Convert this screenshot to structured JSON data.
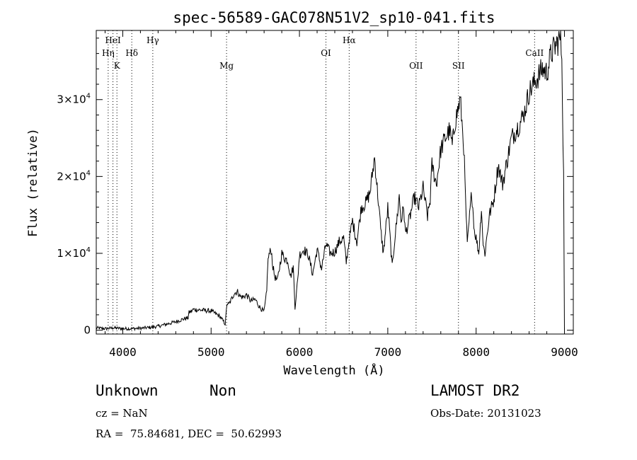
{
  "chart_data": {
    "type": "line",
    "title": "spec-56589-GAC078N51V2_sp10-041.fits",
    "xlabel": "Wavelength (Å)",
    "ylabel": "Flux (relative)",
    "xlim": [
      3700,
      9100
    ],
    "ylim": [
      -500,
      39000
    ],
    "x_ticks": [
      4000,
      5000,
      6000,
      7000,
      8000,
      9000
    ],
    "y_ticks": [
      {
        "value": 0,
        "label": "0"
      },
      {
        "value": 10000,
        "mantissa": "1×10",
        "exp": "4"
      },
      {
        "value": 20000,
        "mantissa": "2×10",
        "exp": "4"
      },
      {
        "value": 30000,
        "mantissa": "3×10",
        "exp": "4"
      }
    ],
    "grid": false,
    "series": [
      {
        "x": [
          3700,
          3800,
          3900,
          4000,
          4100,
          4200,
          4300,
          4400,
          4500,
          4600,
          4700,
          4740,
          4750,
          4780,
          4800,
          4900,
          5000,
          5100,
          5160,
          5180,
          5200,
          5230,
          5260,
          5300,
          5330,
          5360,
          5400,
          5450,
          5500,
          5550,
          5600,
          5630,
          5640,
          5650,
          5680,
          5700,
          5720,
          5750,
          5800,
          5830,
          5870,
          5900,
          5930,
          5950,
          5980,
          6000,
          6050,
          6100,
          6150,
          6200,
          6250,
          6300,
          6350,
          6400,
          6450,
          6500,
          6530,
          6560,
          6600,
          6650,
          6700,
          6750,
          6800,
          6850,
          6880,
          6900,
          6920,
          6950,
          6980,
          7000,
          7020,
          7050,
          7080,
          7100,
          7130,
          7150,
          7180,
          7200,
          7250,
          7300,
          7350,
          7400,
          7420,
          7450,
          7480,
          7500,
          7550,
          7600,
          7650,
          7700,
          7730,
          7760,
          7790,
          7820,
          7840,
          7860,
          7880,
          7900,
          7920,
          7950,
          7980,
          8000,
          8030,
          8060,
          8080,
          8100,
          8150,
          8200,
          8250,
          8300,
          8350,
          8400,
          8450,
          8500,
          8550,
          8600,
          8650,
          8700,
          8750,
          8800,
          8850,
          8900,
          8950,
          8970,
          8990,
          9000
        ],
        "y": [
          300,
          200,
          300,
          200,
          200,
          250,
          350,
          500,
          800,
          1100,
          1500,
          1600,
          2300,
          2500,
          2700,
          2600,
          2500,
          1800,
          800,
          3500,
          3300,
          4000,
          4800,
          5000,
          4400,
          4300,
          4600,
          3800,
          4000,
          3000,
          2400,
          5000,
          8400,
          9600,
          10500,
          8200,
          7000,
          6400,
          10000,
          9400,
          9000,
          7000,
          8200,
          3000,
          6500,
          9800,
          10500,
          9800,
          7300,
          10500,
          8000,
          11200,
          10000,
          10200,
          11500,
          12000,
          8800,
          11500,
          14200,
          11500,
          16000,
          16500,
          18000,
          22500,
          18500,
          16000,
          13000,
          10000,
          13500,
          16000,
          13000,
          8200,
          12000,
          14000,
          17500,
          14200,
          16000,
          12500,
          14700,
          17300,
          16000,
          18500,
          17000,
          14800,
          17000,
          21500,
          19000,
          23500,
          25000,
          26000,
          24000,
          27000,
          28500,
          30000,
          27000,
          24000,
          17000,
          11000,
          14000,
          18000,
          13000,
          12000,
          10000,
          16000,
          11000,
          10000,
          15000,
          17000,
          21500,
          19000,
          22000,
          25000,
          26000,
          27000,
          28500,
          31000,
          32000,
          33000,
          34000,
          33500,
          36000,
          37000,
          38000,
          36000,
          20000,
          0
        ]
      }
    ],
    "lines": [
      {
        "label": "Hη",
        "x": 3835,
        "row": 1
      },
      {
        "label": "HeI",
        "x": 3889,
        "row": 0
      },
      {
        "label": "K",
        "x": 3934,
        "row": 2
      },
      {
        "label": "Hδ",
        "x": 4102,
        "row": 1
      },
      {
        "label": "Hγ",
        "x": 4340,
        "row": 0
      },
      {
        "label": "Mg",
        "x": 5175,
        "row": 2
      },
      {
        "label": "OI",
        "x": 6300,
        "row": 1
      },
      {
        "label": "Hα",
        "x": 6563,
        "row": 0
      },
      {
        "label": "OII",
        "x": 7320,
        "row": 2
      },
      {
        "label": "SII",
        "x": 7800,
        "row": 2
      },
      {
        "label": "CaII",
        "x": 8662,
        "row": 1
      }
    ]
  },
  "info": {
    "classification": "Unknown",
    "subclass": "Non",
    "survey": "LAMOST DR2",
    "redshift_text": "cz = NaN",
    "obs_date_text": "Obs-Date: 20131023",
    "coords_text": "RA =  75.84681, DEC =  50.62993"
  }
}
